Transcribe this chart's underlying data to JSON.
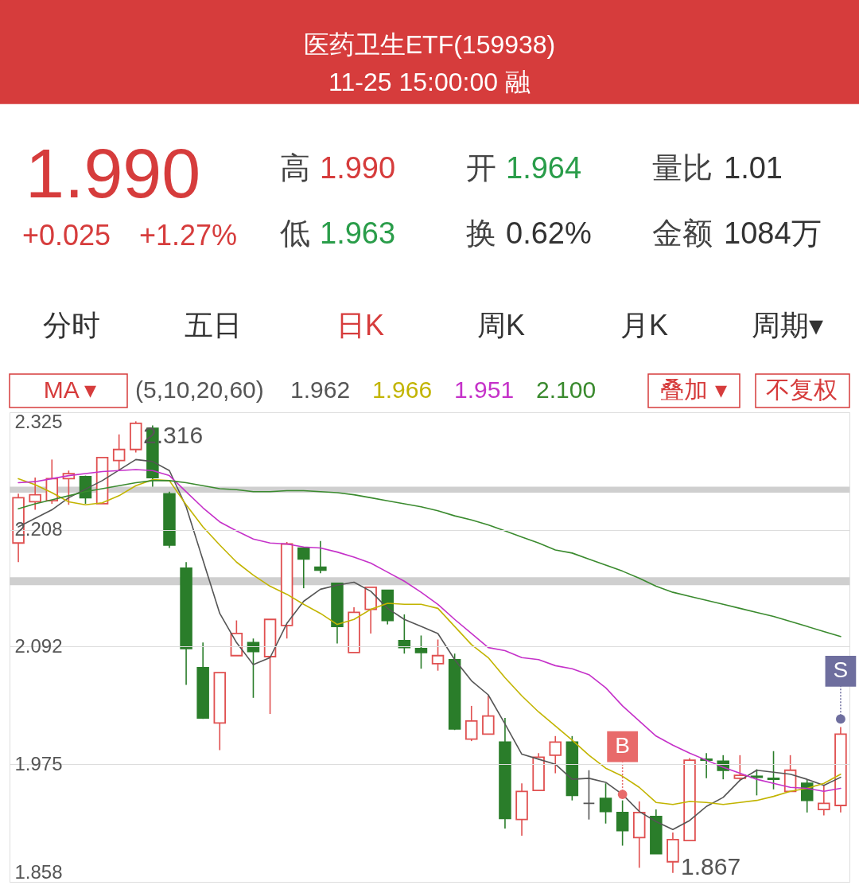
{
  "chart_data": {
    "type": "candlestick",
    "title": "医药卫生ETF(159938)",
    "subtitle": "11-25 15:00:00 融",
    "categories": [
      null,
      null,
      null,
      null,
      null,
      null,
      null,
      null,
      null,
      null,
      null,
      null,
      null,
      null,
      null,
      null,
      null,
      null,
      null,
      null,
      null,
      null,
      null,
      null,
      null,
      null,
      null,
      null,
      null,
      null,
      null,
      null,
      null,
      null,
      null,
      null,
      null,
      null,
      null,
      null,
      null,
      null,
      null,
      null,
      null,
      null,
      null,
      null,
      null,
      null
    ],
    "ohlc": [
      [
        2.195,
        2.244,
        2.176,
        2.24
      ],
      [
        2.236,
        2.26,
        2.228,
        2.243
      ],
      [
        2.237,
        2.278,
        2.234,
        2.259
      ],
      [
        2.259,
        2.267,
        2.233,
        2.264
      ],
      [
        2.261,
        2.262,
        2.234,
        2.24
      ],
      [
        2.234,
        2.28,
        2.234,
        2.28
      ],
      [
        2.277,
        2.303,
        2.267,
        2.288
      ],
      [
        2.288,
        2.316,
        2.285,
        2.314
      ],
      [
        2.309,
        2.312,
        2.251,
        2.26
      ],
      [
        2.244,
        2.246,
        2.19,
        2.193
      ],
      [
        2.17,
        2.176,
        2.054,
        2.09
      ],
      [
        2.071,
        2.096,
        2.02,
        2.021
      ],
      [
        2.016,
        2.066,
        1.989,
        2.066
      ],
      [
        2.083,
        2.118,
        2.083,
        2.105
      ],
      [
        2.096,
        2.1,
        2.041,
        2.087
      ],
      [
        2.082,
        2.119,
        2.025,
        2.119
      ],
      [
        2.113,
        2.196,
        2.1,
        2.194
      ],
      [
        2.19,
        2.19,
        2.15,
        2.179
      ],
      [
        2.171,
        2.197,
        2.165,
        2.168
      ],
      [
        2.155,
        2.155,
        2.095,
        2.112
      ],
      [
        2.086,
        2.131,
        2.086,
        2.126
      ],
      [
        2.129,
        2.151,
        2.105,
        2.151
      ],
      [
        2.148,
        2.148,
        2.114,
        2.118
      ],
      [
        2.098,
        2.124,
        2.085,
        2.091
      ],
      [
        2.09,
        2.103,
        2.07,
        2.086
      ],
      [
        2.075,
        2.099,
        2.068,
        2.083
      ],
      [
        2.079,
        2.085,
        2.009,
        2.01
      ],
      [
        2.0,
        2.033,
        1.998,
        2.018
      ],
      [
        2.005,
        2.043,
        2.005,
        2.023
      ],
      [
        1.997,
        2.021,
        1.911,
        1.921
      ],
      [
        1.92,
        1.956,
        1.904,
        1.948
      ],
      [
        1.949,
        1.986,
        1.949,
        1.982
      ],
      [
        1.984,
        2.003,
        1.966,
        1.997
      ],
      [
        1.997,
        2.003,
        1.939,
        1.944
      ],
      [
        1.936,
        1.969,
        1.92,
        1.936
      ],
      [
        1.941,
        1.956,
        1.916,
        1.928
      ],
      [
        1.927,
        1.939,
        1.894,
        1.909
      ],
      [
        1.902,
        1.938,
        1.872,
        1.927
      ],
      [
        1.923,
        1.93,
        1.886,
        1.886
      ],
      [
        1.878,
        1.907,
        1.867,
        1.9
      ],
      [
        1.899,
        1.981,
        1.899,
        1.979
      ],
      [
        1.98,
        1.986,
        1.961,
        1.979
      ],
      [
        1.978,
        1.984,
        1.96,
        1.969
      ],
      [
        1.961,
        1.984,
        1.959,
        1.964
      ],
      [
        1.963,
        1.97,
        1.944,
        1.962
      ],
      [
        1.961,
        1.988,
        1.95,
        1.96
      ],
      [
        1.948,
        1.984,
        1.948,
        1.969
      ],
      [
        1.956,
        1.96,
        1.927,
        1.939
      ],
      [
        1.93,
        1.954,
        1.924,
        1.936
      ],
      [
        1.934,
        2.012,
        1.927,
        2.005
      ]
    ],
    "colors": [
      "#e05050",
      "#e05050",
      "#e05050",
      "#e05050",
      "#2a7d2a",
      "#e05050",
      "#e05050",
      "#e05050",
      "#2a7d2a",
      "#2a7d2a",
      "#2a7d2a",
      "#2a7d2a",
      "#e05050",
      "#e05050",
      "#2a7d2a",
      "#e05050",
      "#e05050",
      "#2a7d2a",
      "#2a7d2a",
      "#2a7d2a",
      "#e05050",
      "#e05050",
      "#2a7d2a",
      "#2a7d2a",
      "#2a7d2a",
      "#e05050",
      "#2a7d2a",
      "#e05050",
      "#e05050",
      "#2a7d2a",
      "#e05050",
      "#e05050",
      "#e05050",
      "#2a7d2a",
      "#555555",
      "#2a7d2a",
      "#2a7d2a",
      "#e05050",
      "#2a7d2a",
      "#e05050",
      "#e05050",
      "#2a7d2a",
      "#2a7d2a",
      "#e05050",
      "#2a7d2a",
      "#2a7d2a",
      "#e05050",
      "#2a7d2a",
      "#e05050",
      "#e05050"
    ],
    "series": [
      {
        "name": "1.962",
        "type": "line",
        "color": "#555555",
        "values": [
          2.211,
          null,
          2.228,
          2.24,
          null,
          2.257,
          null,
          2.278,
          2.276,
          2.267,
          2.231,
          null,
          2.125,
          2.096,
          2.074,
          2.081,
          2.115,
          2.137,
          2.149,
          2.153,
          2.156,
          2.147,
          2.13,
          2.119,
          2.112,
          2.105,
          2.079,
          2.058,
          2.044,
          2.015,
          1.985,
          1.98,
          1.975,
          1.96,
          1.961,
          1.957,
          1.945,
          1.928,
          1.918,
          1.91,
          1.919,
          1.933,
          1.942,
          1.959,
          1.969,
          1.967,
          1.965,
          1.96,
          1.954,
          1.962
        ]
      },
      {
        "name": "1.966",
        "type": "line",
        "color": "#c2b400",
        "values": [
          2.259,
          2.253,
          2.245,
          2.236,
          2.233,
          2.235,
          2.242,
          2.252,
          2.258,
          2.257,
          2.233,
          2.211,
          2.193,
          2.176,
          2.163,
          2.152,
          2.144,
          2.134,
          2.125,
          2.114,
          2.119,
          2.129,
          2.135,
          2.134,
          2.134,
          2.13,
          2.112,
          2.094,
          2.081,
          2.061,
          2.043,
          2.027,
          2.013,
          1.999,
          1.984,
          1.971,
          1.963,
          1.952,
          1.937,
          1.935,
          1.938,
          1.937,
          1.935,
          1.937,
          1.939,
          1.943,
          1.948,
          1.951,
          1.956,
          1.965
        ]
      },
      {
        "name": "1.951",
        "type": "line",
        "color": "#c531c9",
        "values": [
          2.255,
          2.256,
          2.259,
          2.262,
          2.264,
          2.266,
          2.267,
          2.268,
          2.267,
          2.262,
          2.246,
          2.23,
          2.216,
          2.207,
          2.199,
          2.195,
          2.194,
          2.191,
          2.19,
          2.186,
          2.181,
          2.175,
          2.166,
          2.157,
          2.146,
          2.134,
          2.119,
          2.105,
          2.091,
          2.088,
          2.081,
          2.079,
          2.073,
          2.07,
          2.064,
          2.051,
          2.033,
          2.018,
          2.003,
          1.994,
          1.986,
          1.979,
          1.972,
          1.966,
          1.96,
          1.956,
          1.952,
          1.951,
          1.948,
          1.951
        ]
      },
      {
        "name": "2.100",
        "type": "line",
        "color": "#3a8a2e",
        "values": [
          2.229,
          2.234,
          2.238,
          2.242,
          2.246,
          2.249,
          2.252,
          2.255,
          2.257,
          2.257,
          2.255,
          2.252,
          2.249,
          2.248,
          2.246,
          2.246,
          2.247,
          2.247,
          2.246,
          2.245,
          2.243,
          2.24,
          2.237,
          2.234,
          2.231,
          2.227,
          2.222,
          2.218,
          2.213,
          2.207,
          2.201,
          2.195,
          2.188,
          2.185,
          2.179,
          2.173,
          2.167,
          2.16,
          2.152,
          2.146,
          2.142,
          2.138,
          2.134,
          2.13,
          2.126,
          2.122,
          2.117,
          2.112,
          2.107,
          2.102
        ]
      },
      {
        "type": "scatter",
        "color": "#e86a6a",
        "values": [
          null,
          null,
          null,
          null,
          null,
          null,
          null,
          null,
          null,
          null,
          null,
          null,
          null,
          null,
          null,
          null,
          null,
          null,
          null,
          null,
          null,
          null,
          null,
          null,
          null,
          null,
          null,
          null,
          null,
          null,
          null,
          null,
          null,
          null,
          null,
          null,
          1.945,
          null,
          null,
          null,
          null,
          null,
          null,
          null,
          null,
          null,
          null,
          null,
          null,
          null
        ],
        "value_labels": [
          null,
          null,
          null,
          null,
          null,
          null,
          null,
          null,
          null,
          null,
          null,
          null,
          null,
          null,
          null,
          null,
          null,
          null,
          null,
          null,
          null,
          null,
          null,
          null,
          null,
          null,
          null,
          null,
          null,
          null,
          null,
          null,
          null,
          null,
          null,
          null,
          "B",
          null,
          null,
          null,
          null,
          null,
          null,
          null,
          null,
          null,
          null,
          null,
          null,
          null
        ]
      },
      {
        "type": "scatter",
        "color": "#6e6e9e",
        "values": [
          null,
          null,
          null,
          null,
          null,
          null,
          null,
          null,
          null,
          null,
          null,
          null,
          null,
          null,
          null,
          null,
          null,
          null,
          null,
          null,
          null,
          null,
          null,
          null,
          null,
          null,
          null,
          null,
          null,
          null,
          null,
          null,
          null,
          null,
          null,
          null,
          null,
          null,
          null,
          null,
          null,
          null,
          null,
          null,
          null,
          null,
          null,
          null,
          null,
          2.02
        ],
        "value_labels": [
          null,
          null,
          null,
          null,
          null,
          null,
          null,
          null,
          null,
          null,
          null,
          null,
          null,
          null,
          null,
          null,
          null,
          null,
          null,
          null,
          null,
          null,
          null,
          null,
          null,
          null,
          null,
          null,
          null,
          null,
          null,
          null,
          null,
          null,
          null,
          null,
          null,
          null,
          null,
          null,
          null,
          null,
          null,
          null,
          null,
          null,
          null,
          null,
          null,
          "S"
        ]
      }
    ],
    "bands": [
      {
        "axis": "y",
        "from": 2.245,
        "to": 2.251,
        "color": "#cfcfcf"
      },
      {
        "axis": "y",
        "from": 2.153,
        "to": 2.161,
        "color": "#cfcfcf"
      }
    ],
    "ylim": [
      1.858,
      2.325
    ],
    "yticks": [
      1.858,
      1.975,
      2.092,
      2.208,
      2.325
    ],
    "grid": "y",
    "tick_labels": "y",
    "legend": "top left",
    "annotations": [
      "1.990",
      "+0.025",
      "+1.27%",
      "高",
      "1.990",
      "开",
      "1.964",
      "量比",
      "1.01",
      "低",
      "1.963",
      "换",
      "0.62%",
      "金额",
      "1084万",
      "分时",
      "五日",
      "日K",
      "周K",
      "月K",
      "周期▾",
      "MA ▾",
      "(5,10,20,60)",
      "叠加 ▾",
      "不复权",
      "2.316",
      "1.867"
    ]
  }
}
